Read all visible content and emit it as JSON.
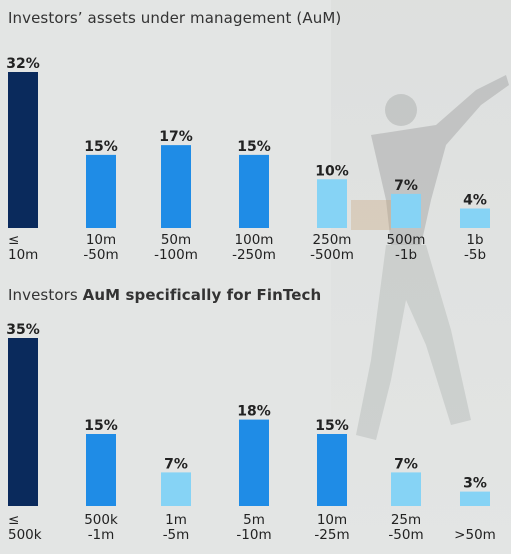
{
  "colors": {
    "dark": "#0a2a5c",
    "mid": "#1f8ce6",
    "light": "#86d3f5",
    "background": "#e3e5e4"
  },
  "chart_data": [
    {
      "type": "bar",
      "title_prefix": "Investors’ assets under management",
      "title_suffix": " (AuM)",
      "categories": [
        [
          "≤",
          "10m"
        ],
        [
          "10m",
          "-50m"
        ],
        [
          "50m",
          "-100m"
        ],
        [
          "100m",
          "-250m"
        ],
        [
          "250m",
          "-500m"
        ],
        [
          "500m",
          "-1b"
        ],
        [
          "1b",
          "-5b"
        ]
      ],
      "values": [
        32,
        15,
        17,
        15,
        10,
        7,
        4
      ],
      "labels": [
        "32%",
        "15%",
        "17%",
        "15%",
        "10%",
        "7%",
        "4%"
      ],
      "shades": [
        "dark",
        "mid",
        "mid",
        "mid",
        "light",
        "light",
        "light"
      ],
      "ylim": [
        0,
        32
      ],
      "grid": false
    },
    {
      "type": "bar",
      "title_prefix": "Investors ",
      "title_suffix": "AuM specifically for FinTech",
      "categories": [
        [
          "≤",
          "500k"
        ],
        [
          "500k",
          "-1m"
        ],
        [
          "1m",
          "-5m"
        ],
        [
          "5m",
          "-10m"
        ],
        [
          "10m",
          "-25m"
        ],
        [
          "25m",
          "-50m"
        ],
        [
          "",
          ">50m"
        ]
      ],
      "values": [
        35,
        15,
        7,
        18,
        15,
        7,
        3
      ],
      "labels": [
        "35%",
        "15%",
        "7%",
        "18%",
        "15%",
        "7%",
        "3%"
      ],
      "shades": [
        "dark",
        "mid",
        "light",
        "mid",
        "mid",
        "light",
        "light"
      ],
      "ylim": [
        0,
        35
      ],
      "grid": false
    }
  ]
}
